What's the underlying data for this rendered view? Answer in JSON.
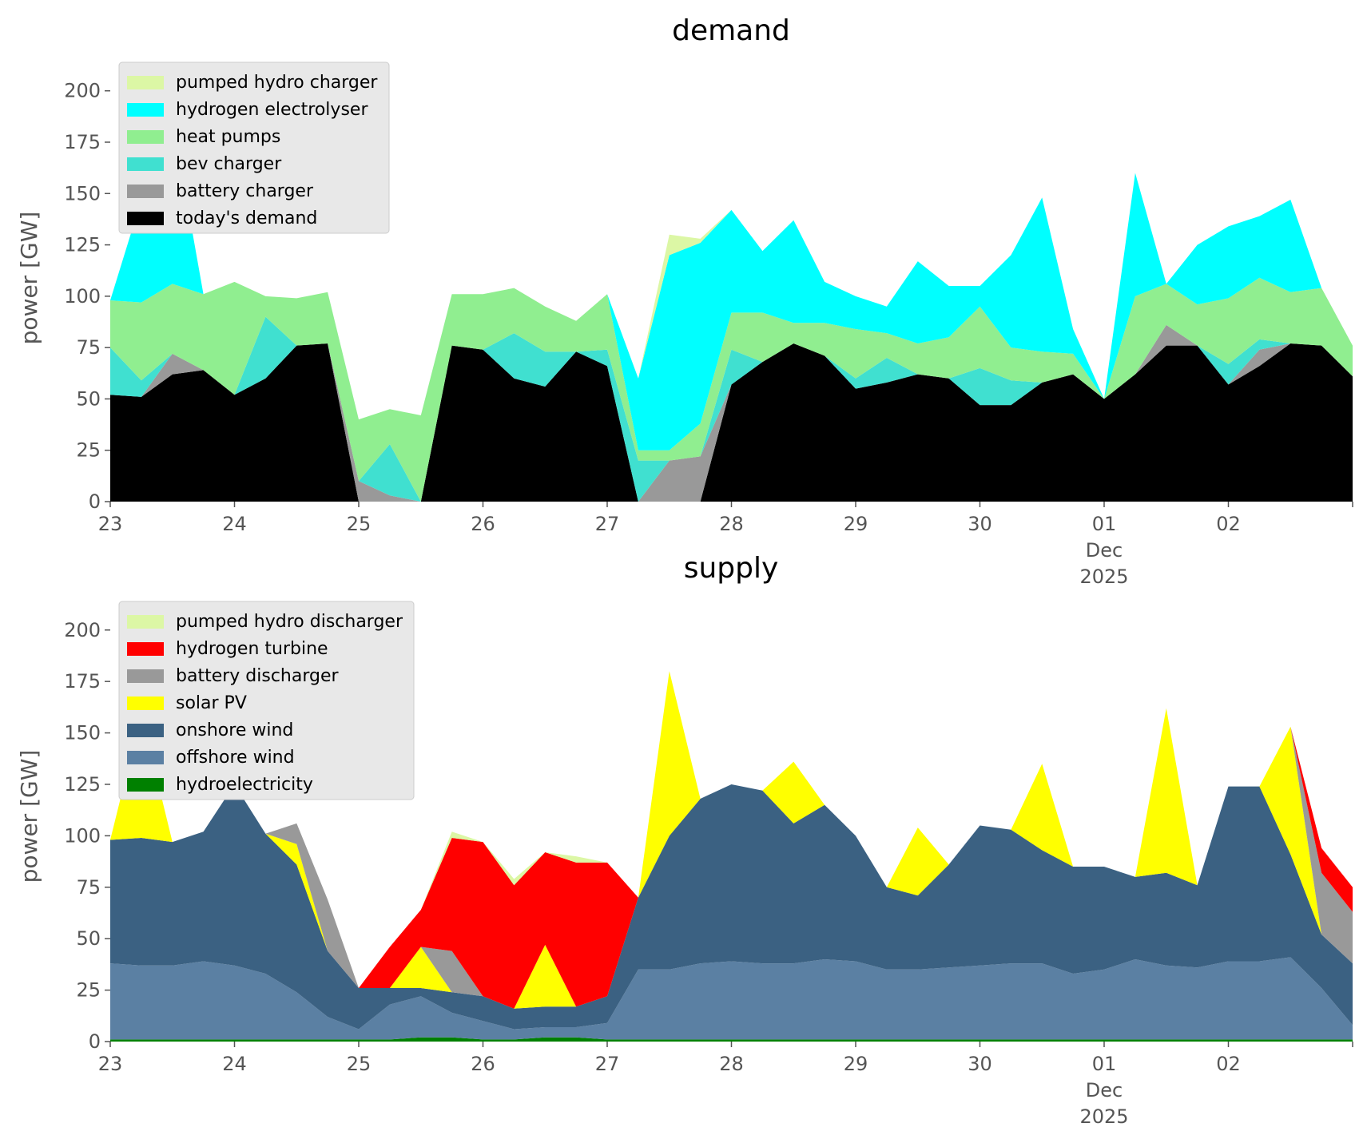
{
  "chart_data": [
    {
      "type": "area",
      "title": "demand",
      "ylabel": "power [GW]",
      "ylim": [
        0,
        210
      ],
      "yticks": [
        0,
        25,
        50,
        75,
        100,
        125,
        150,
        175,
        200
      ],
      "xlim": [
        "2025-11-23",
        "2025-12-03"
      ],
      "x_ticks": [
        {
          "x": "2025-11-23",
          "lines": [
            "23"
          ]
        },
        {
          "x": "2025-11-24",
          "lines": [
            "24"
          ]
        },
        {
          "x": "2025-11-25",
          "lines": [
            "25"
          ]
        },
        {
          "x": "2025-11-26",
          "lines": [
            "26"
          ]
        },
        {
          "x": "2025-11-27",
          "lines": [
            "27"
          ]
        },
        {
          "x": "2025-11-28",
          "lines": [
            "28"
          ]
        },
        {
          "x": "2025-11-29",
          "lines": [
            "29"
          ]
        },
        {
          "x": "2025-11-30",
          "lines": [
            "30"
          ]
        },
        {
          "x": "2025-12-01",
          "lines": [
            "01",
            "Dec",
            "2025"
          ]
        },
        {
          "x": "2025-12-02",
          "lines": [
            "02"
          ]
        }
      ],
      "legend_position": "top-left",
      "legend_order": [
        "pumped hydro charger",
        "hydrogen electrolyser",
        "heat pumps",
        "bev charger",
        "battery charger",
        "today's demand"
      ],
      "x": [
        "2025-11-23 00:00",
        "2025-11-23 06:00",
        "2025-11-23 12:00",
        "2025-11-23 18:00",
        "2025-11-24 00:00",
        "2025-11-24 06:00",
        "2025-11-24 12:00",
        "2025-11-24 18:00",
        "2025-11-25 00:00",
        "2025-11-25 06:00",
        "2025-11-25 12:00",
        "2025-11-25 18:00",
        "2025-11-26 00:00",
        "2025-11-26 06:00",
        "2025-11-26 12:00",
        "2025-11-26 18:00",
        "2025-11-27 00:00",
        "2025-11-27 06:00",
        "2025-11-27 12:00",
        "2025-11-27 18:00",
        "2025-11-28 00:00",
        "2025-11-28 06:00",
        "2025-11-28 12:00",
        "2025-11-28 18:00",
        "2025-11-29 00:00",
        "2025-11-29 06:00",
        "2025-11-29 12:00",
        "2025-11-29 18:00",
        "2025-11-30 00:00",
        "2025-11-30 06:00",
        "2025-11-30 12:00",
        "2025-11-30 18:00",
        "2025-12-01 00:00",
        "2025-12-01 06:00",
        "2025-12-01 12:00",
        "2025-12-01 18:00",
        "2025-12-02 00:00",
        "2025-12-02 06:00",
        "2025-12-02 12:00",
        "2025-12-02 18:00",
        "2025-12-03 00:00"
      ],
      "series": [
        {
          "name": "today's demand",
          "color": "#000000",
          "values": [
            52,
            51,
            62,
            64,
            52,
            60,
            76,
            77,
            0,
            0,
            0,
            76,
            74,
            60,
            56,
            73,
            66,
            0,
            0,
            0,
            57,
            68,
            77,
            71,
            55,
            58,
            62,
            60,
            47,
            47,
            58,
            62,
            50,
            62,
            76,
            76,
            57,
            66,
            77,
            76,
            61
          ]
        },
        {
          "name": "battery charger",
          "color": "#999999",
          "values": [
            0,
            0,
            10,
            0,
            0,
            0,
            0,
            0,
            10,
            3,
            0,
            0,
            0,
            0,
            0,
            0,
            0,
            0,
            20,
            22,
            0,
            0,
            0,
            0,
            0,
            0,
            0,
            0,
            0,
            0,
            0,
            0,
            0,
            0,
            10,
            0,
            0,
            8,
            0,
            0,
            0
          ]
        },
        {
          "name": "bev charger",
          "color": "#40E0D0",
          "values": [
            23,
            8,
            0,
            0,
            0,
            30,
            0,
            0,
            0,
            25,
            0,
            0,
            0,
            22,
            17,
            0,
            8,
            20,
            0,
            0,
            17,
            0,
            0,
            0,
            5,
            12,
            0,
            0,
            18,
            12,
            0,
            0,
            0,
            0,
            0,
            0,
            10,
            5,
            0,
            0,
            0
          ]
        },
        {
          "name": "heat pumps",
          "color": "#90EE90",
          "values": [
            23,
            38,
            34,
            37,
            55,
            10,
            23,
            25,
            30,
            17,
            42,
            25,
            27,
            22,
            22,
            15,
            27,
            5,
            5,
            16,
            18,
            24,
            10,
            16,
            24,
            12,
            15,
            20,
            30,
            16,
            15,
            10,
            0,
            38,
            20,
            20,
            32,
            30,
            25,
            28,
            15
          ]
        },
        {
          "name": "hydrogen electrolyser",
          "color": "#00FFFF",
          "values": [
            0,
            50,
            80,
            0,
            0,
            0,
            0,
            0,
            0,
            0,
            0,
            0,
            0,
            0,
            0,
            0,
            0,
            35,
            95,
            88,
            50,
            30,
            50,
            20,
            16,
            13,
            40,
            25,
            10,
            45,
            75,
            12,
            0,
            60,
            0,
            29,
            35,
            30,
            45,
            0,
            0
          ]
        },
        {
          "name": "pumped hydro charger",
          "color": "#DCF7A5",
          "values": [
            0,
            0,
            0,
            0,
            0,
            0,
            0,
            0,
            0,
            0,
            0,
            0,
            0,
            0,
            0,
            0,
            0,
            0,
            10,
            2,
            0,
            0,
            0,
            0,
            0,
            0,
            0,
            0,
            0,
            0,
            0,
            0,
            0,
            0,
            0,
            0,
            0,
            0,
            0,
            0,
            0
          ]
        }
      ]
    },
    {
      "type": "area",
      "title": "supply",
      "ylabel": "power [GW]",
      "ylim": [
        0,
        210
      ],
      "yticks": [
        0,
        25,
        50,
        75,
        100,
        125,
        150,
        175,
        200
      ],
      "xlim": [
        "2025-11-23",
        "2025-12-03"
      ],
      "x_ticks": [
        {
          "x": "2025-11-23",
          "lines": [
            "23"
          ]
        },
        {
          "x": "2025-11-24",
          "lines": [
            "24"
          ]
        },
        {
          "x": "2025-11-25",
          "lines": [
            "25"
          ]
        },
        {
          "x": "2025-11-26",
          "lines": [
            "26"
          ]
        },
        {
          "x": "2025-11-27",
          "lines": [
            "27"
          ]
        },
        {
          "x": "2025-11-28",
          "lines": [
            "28"
          ]
        },
        {
          "x": "2025-11-29",
          "lines": [
            "29"
          ]
        },
        {
          "x": "2025-11-30",
          "lines": [
            "30"
          ]
        },
        {
          "x": "2025-12-01",
          "lines": [
            "01",
            "Dec",
            "2025"
          ]
        },
        {
          "x": "2025-12-02",
          "lines": [
            "02"
          ]
        }
      ],
      "legend_position": "top-left",
      "legend_order": [
        "pumped hydro discharger",
        "hydrogen turbine",
        "battery discharger",
        "solar PV",
        "onshore wind",
        "offshore wind",
        "hydroelectricity"
      ],
      "x": [
        "2025-11-23 00:00",
        "2025-11-23 06:00",
        "2025-11-23 12:00",
        "2025-11-23 18:00",
        "2025-11-24 00:00",
        "2025-11-24 06:00",
        "2025-11-24 12:00",
        "2025-11-24 18:00",
        "2025-11-25 00:00",
        "2025-11-25 06:00",
        "2025-11-25 12:00",
        "2025-11-25 18:00",
        "2025-11-26 00:00",
        "2025-11-26 06:00",
        "2025-11-26 12:00",
        "2025-11-26 18:00",
        "2025-11-27 00:00",
        "2025-11-27 06:00",
        "2025-11-27 12:00",
        "2025-11-27 18:00",
        "2025-11-28 00:00",
        "2025-11-28 06:00",
        "2025-11-28 12:00",
        "2025-11-28 18:00",
        "2025-11-29 00:00",
        "2025-11-29 06:00",
        "2025-11-29 12:00",
        "2025-11-29 18:00",
        "2025-11-30 00:00",
        "2025-11-30 06:00",
        "2025-11-30 12:00",
        "2025-11-30 18:00",
        "2025-12-01 00:00",
        "2025-12-01 06:00",
        "2025-12-01 12:00",
        "2025-12-01 18:00",
        "2025-12-02 00:00",
        "2025-12-02 06:00",
        "2025-12-02 12:00",
        "2025-12-02 18:00",
        "2025-12-03 00:00"
      ],
      "series": [
        {
          "name": "hydroelectricity",
          "color": "#008000",
          "values": [
            1,
            1,
            1,
            1,
            1,
            1,
            1,
            1,
            1,
            1,
            2,
            2,
            1,
            1,
            2,
            2,
            1,
            1,
            1,
            1,
            1,
            1,
            1,
            1,
            1,
            1,
            1,
            1,
            1,
            1,
            1,
            1,
            1,
            1,
            1,
            1,
            1,
            1,
            1,
            1,
            1
          ]
        },
        {
          "name": "offshore wind",
          "color": "#5B80A3",
          "values": [
            37,
            36,
            36,
            38,
            36,
            32,
            23,
            11,
            5,
            17,
            20,
            12,
            9,
            5,
            5,
            5,
            8,
            34,
            34,
            37,
            38,
            37,
            37,
            39,
            38,
            34,
            34,
            35,
            36,
            37,
            37,
            32,
            34,
            39,
            36,
            35,
            38,
            38,
            40,
            25,
            7
          ]
        },
        {
          "name": "onshore wind",
          "color": "#3B6182",
          "values": [
            60,
            62,
            60,
            63,
            88,
            68,
            62,
            32,
            20,
            8,
            4,
            10,
            12,
            10,
            10,
            10,
            13,
            35,
            65,
            80,
            86,
            84,
            68,
            75,
            61,
            40,
            36,
            50,
            68,
            65,
            55,
            52,
            50,
            40,
            45,
            40,
            85,
            85,
            50,
            26,
            30
          ]
        },
        {
          "name": "solar PV",
          "color": "#FFFF00",
          "values": [
            0,
            60,
            0,
            0,
            0,
            0,
            10,
            0,
            0,
            0,
            20,
            0,
            0,
            0,
            30,
            0,
            0,
            0,
            80,
            0,
            0,
            0,
            30,
            0,
            0,
            0,
            33,
            0,
            0,
            0,
            42,
            0,
            0,
            0,
            80,
            0,
            0,
            0,
            62,
            0,
            0
          ]
        },
        {
          "name": "battery discharger",
          "color": "#999999",
          "values": [
            0,
            0,
            0,
            0,
            0,
            0,
            10,
            25,
            0,
            0,
            0,
            20,
            0,
            0,
            0,
            0,
            0,
            0,
            0,
            0,
            0,
            0,
            0,
            0,
            0,
            0,
            0,
            0,
            0,
            0,
            0,
            0,
            0,
            0,
            0,
            0,
            0,
            0,
            0,
            30,
            25
          ]
        },
        {
          "name": "hydrogen turbine",
          "color": "#FF0000",
          "values": [
            0,
            0,
            0,
            0,
            0,
            0,
            0,
            0,
            0,
            20,
            18,
            55,
            75,
            60,
            45,
            70,
            65,
            0,
            0,
            0,
            0,
            0,
            0,
            0,
            0,
            0,
            0,
            0,
            0,
            0,
            0,
            0,
            0,
            0,
            0,
            0,
            0,
            0,
            0,
            12,
            12
          ]
        },
        {
          "name": "pumped hydro discharger",
          "color": "#DCF7A5",
          "values": [
            0,
            0,
            0,
            0,
            0,
            0,
            0,
            0,
            0,
            0,
            0,
            3,
            0,
            3,
            0,
            3,
            0,
            0,
            0,
            0,
            0,
            0,
            0,
            0,
            0,
            0,
            0,
            0,
            0,
            0,
            0,
            0,
            0,
            0,
            0,
            0,
            0,
            0,
            0,
            0,
            0
          ]
        }
      ]
    }
  ]
}
